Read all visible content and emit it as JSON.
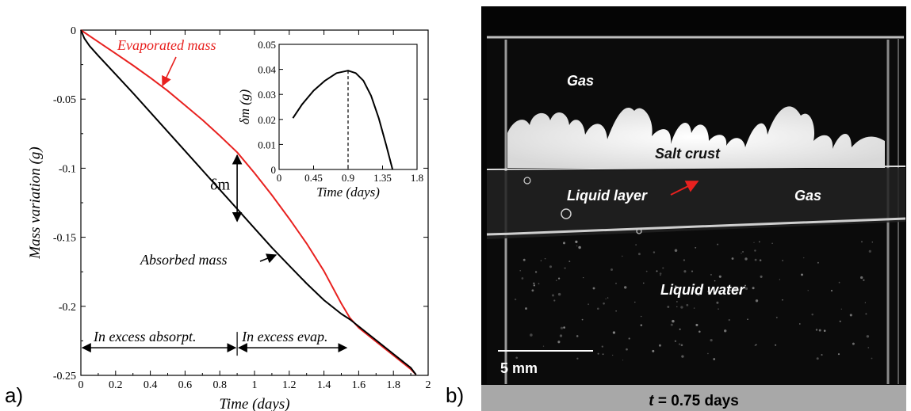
{
  "panel_labels": {
    "a": "a)",
    "b": "b)"
  },
  "chart_data": [
    {
      "type": "line",
      "xlabel": "Time (days)",
      "ylabel": "Mass variation (g)",
      "xlim": [
        0,
        2
      ],
      "ylim": [
        -0.25,
        0
      ],
      "x_ticks": [
        "0",
        "0.2",
        "0.4",
        "0.6",
        "0.8",
        "1",
        "1.2",
        "1.4",
        "1.6",
        "1.8",
        "2"
      ],
      "y_ticks": [
        "0",
        "-0.05",
        "-0.1",
        "-0.15",
        "-0.2",
        "-0.25"
      ],
      "grid": false,
      "series": [
        {
          "name": "Evaporated mass",
          "color": "#e8211f",
          "x": [
            0,
            0.1,
            0.2,
            0.3,
            0.4,
            0.5,
            0.6,
            0.7,
            0.8,
            0.9,
            1.0,
            1.1,
            1.2,
            1.3,
            1.4,
            1.5,
            1.55,
            1.6,
            1.7,
            1.8,
            1.9,
            1.93
          ],
          "y": [
            0,
            -0.0085,
            -0.017,
            -0.0255,
            -0.0345,
            -0.044,
            -0.0545,
            -0.065,
            -0.0765,
            -0.0885,
            -0.1035,
            -0.1195,
            -0.1365,
            -0.1545,
            -0.1745,
            -0.198,
            -0.2085,
            -0.2155,
            -0.2255,
            -0.2355,
            -0.2455,
            -0.2495
          ]
        },
        {
          "name": "Absorbed mass",
          "color": "#000000",
          "x": [
            0,
            0.02,
            0.05,
            0.1,
            0.2,
            0.3,
            0.4,
            0.5,
            0.6,
            0.7,
            0.8,
            0.9,
            1.0,
            1.1,
            1.2,
            1.3,
            1.4,
            1.5,
            1.55,
            1.6,
            1.7,
            1.8,
            1.9,
            1.93
          ],
          "y": [
            0,
            -0.006,
            -0.0115,
            -0.0185,
            -0.032,
            -0.0455,
            -0.0595,
            -0.0735,
            -0.0875,
            -0.1015,
            -0.1155,
            -0.1295,
            -0.1435,
            -0.1575,
            -0.1705,
            -0.1835,
            -0.1955,
            -0.2055,
            -0.2095,
            -0.2145,
            -0.2245,
            -0.2345,
            -0.2445,
            -0.2495
          ]
        }
      ],
      "annotations": {
        "evaporated_label": "Evaporated mass",
        "absorbed_label": "Absorbed mass",
        "delta_label": "δm",
        "delta_at_x": 0.9,
        "delta_from_y": -0.0895,
        "delta_to_y": -0.1395,
        "excess_absorpt": "In excess absorpt.",
        "excess_evap": "In excess evap.",
        "excess_arrow_y": -0.23,
        "excess_split_x": 0.9,
        "excess_end_x": 1.53
      }
    },
    {
      "type": "line",
      "role": "inset",
      "xlabel": "Time (days)",
      "ylabel": "δm (g)",
      "xlim": [
        0,
        1.8
      ],
      "ylim": [
        0,
        0.05
      ],
      "x_ticks": [
        "0",
        "0.45",
        "0.9",
        "1.35",
        "1.8"
      ],
      "y_ticks": [
        "0",
        "0.01",
        "0.02",
        "0.03",
        "0.04",
        "0.05"
      ],
      "series": [
        {
          "name": "δm",
          "color": "#000000",
          "x": [
            0.18,
            0.3,
            0.45,
            0.6,
            0.75,
            0.9,
            1.0,
            1.1,
            1.2,
            1.3,
            1.4,
            1.48
          ],
          "y": [
            0.0205,
            0.026,
            0.0315,
            0.0355,
            0.0385,
            0.0395,
            0.0385,
            0.0355,
            0.0295,
            0.0205,
            0.0095,
            0.0
          ]
        }
      ],
      "vline_x": 0.9
    }
  ],
  "photo": {
    "labels": {
      "gas_top": "Gas",
      "salt_crust": "Salt crust",
      "liquid_layer": "Liquid layer",
      "gas_right": "Gas",
      "liquid_water": "Liquid water"
    },
    "scale_bar": "5 mm",
    "caption_prefix": "t",
    "caption_value": " = 0.75 days"
  }
}
